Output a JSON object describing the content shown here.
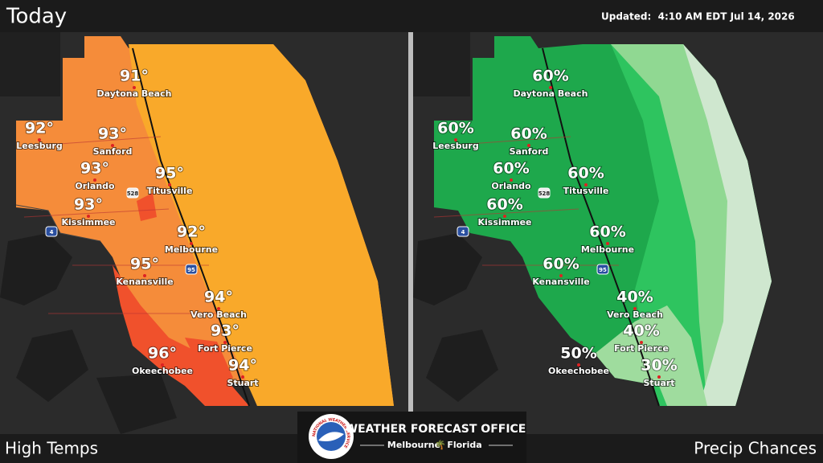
{
  "header": {
    "title": "Today",
    "updated": "Updated:  4:10 AM EDT Jul 14, 2026"
  },
  "panels": [
    {
      "label": "High Temps",
      "cities": [
        {
          "name": "Daytona Beach",
          "value": "91°"
        },
        {
          "name": "Leesburg",
          "value": "92°"
        },
        {
          "name": "Sanford",
          "value": "93°"
        },
        {
          "name": "Orlando",
          "value": "93°"
        },
        {
          "name": "Titusville",
          "value": "95°"
        },
        {
          "name": "Kissimmee",
          "value": "93°"
        },
        {
          "name": "Melbourne",
          "value": "92°"
        },
        {
          "name": "Kenansville",
          "value": "95°"
        },
        {
          "name": "Vero Beach",
          "value": "94°"
        },
        {
          "name": "Fort Pierce",
          "value": "93°"
        },
        {
          "name": "Okeechobee",
          "value": "96°"
        },
        {
          "name": "Stuart",
          "value": "94°"
        }
      ]
    },
    {
      "label": "Precip Chances",
      "cities": [
        {
          "name": "Daytona Beach",
          "value": "60%"
        },
        {
          "name": "Leesburg",
          "value": "60%"
        },
        {
          "name": "Sanford",
          "value": "60%"
        },
        {
          "name": "Orlando",
          "value": "60%"
        },
        {
          "name": "Titusville",
          "value": "60%"
        },
        {
          "name": "Kissimmee",
          "value": "60%"
        },
        {
          "name": "Melbourne",
          "value": "60%"
        },
        {
          "name": "Kenansville",
          "value": "60%"
        },
        {
          "name": "Vero Beach",
          "value": "40%"
        },
        {
          "name": "Fort Pierce",
          "value": "40%"
        },
        {
          "name": "Okeechobee",
          "value": "50%"
        },
        {
          "name": "Stuart",
          "value": "30%"
        }
      ]
    }
  ],
  "road_signs": [
    "528",
    "4",
    "95"
  ],
  "footer": {
    "office": "WEATHER FORECAST OFFICE",
    "city": "Melbourne",
    "state": "Florida",
    "logo_text": "NATIONAL WEATHER SERVICE"
  }
}
